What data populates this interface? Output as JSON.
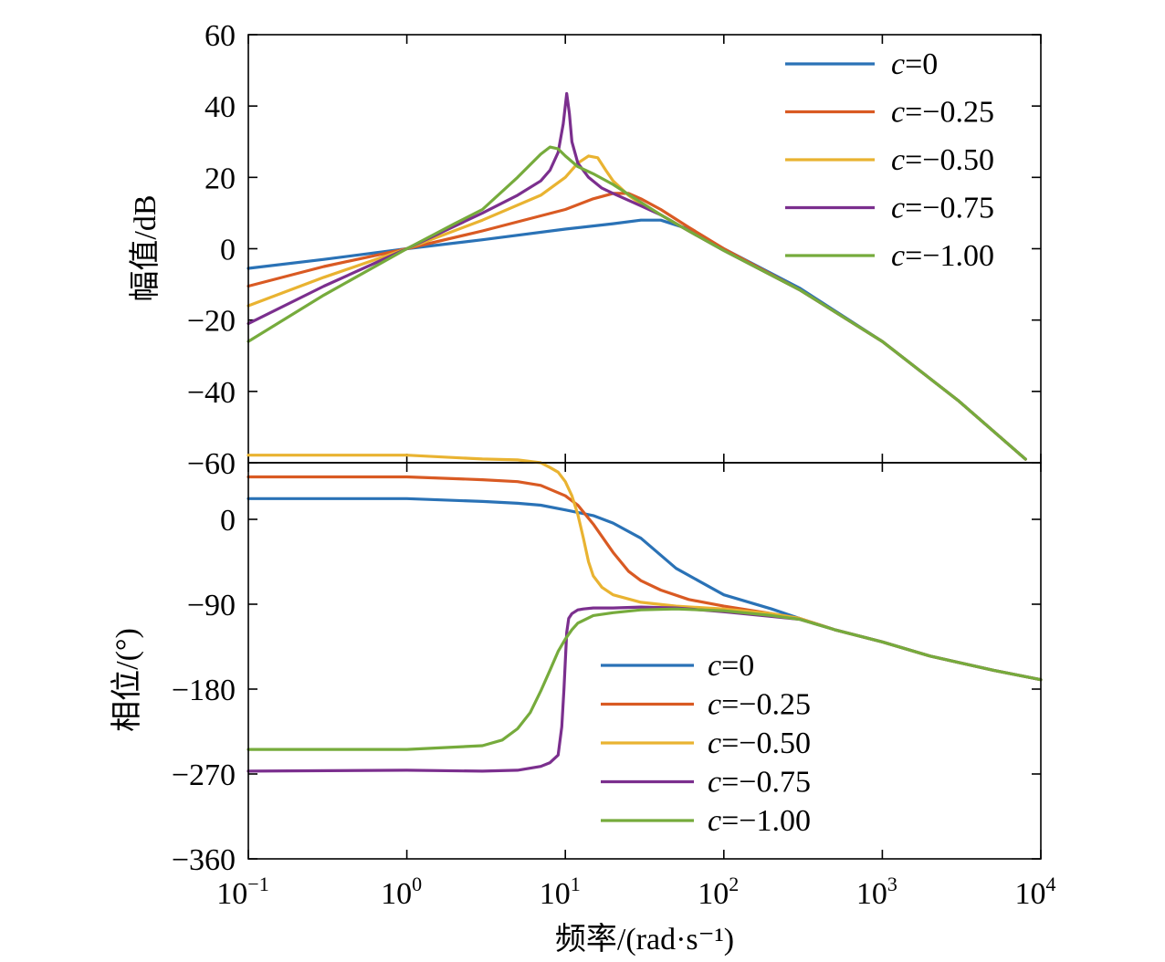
{
  "colors": {
    "c=0": "#2a72b6",
    "c=-0.25": "#d95a23",
    "c=-0.50": "#e9b331",
    "c=-0.75": "#7b2f8e",
    "c=-1.00": "#76ab3c"
  },
  "chart_data": [
    {
      "type": "line",
      "panel": "magnitude",
      "ylabel": "幅值/dB",
      "xscale": "log",
      "xlim": [
        0.1,
        10000
      ],
      "ylim": [
        -60,
        60
      ],
      "yticks": [
        60,
        40,
        20,
        0,
        -20,
        -40,
        -60
      ],
      "ytick_labels": [
        "60",
        "40",
        "20",
        "0",
        "−20",
        "−40",
        "−60"
      ],
      "legend_position": "top-right",
      "legend": [
        {
          "prefix": "c",
          "suffix": "=0"
        },
        {
          "prefix": "c",
          "suffix": "=−0.25"
        },
        {
          "prefix": "c",
          "suffix": "=−0.50"
        },
        {
          "prefix": "c",
          "suffix": "=−0.75"
        },
        {
          "prefix": "c",
          "suffix": "=−1.00"
        }
      ],
      "series": [
        {
          "key": "c=0",
          "x": [
            0.1,
            0.3,
            1,
            3,
            10,
            20,
            30,
            40,
            60,
            100,
            300,
            1000,
            3000,
            8000
          ],
          "y": [
            -5.5,
            -3,
            0,
            2.5,
            5.5,
            7,
            8,
            8,
            5.5,
            0,
            -11,
            -26,
            -42.5,
            -59
          ]
        },
        {
          "key": "c=-0.25",
          "x": [
            0.1,
            0.3,
            1,
            3,
            10,
            15,
            20,
            25,
            30,
            40,
            60,
            100,
            300,
            1000,
            3000,
            8000
          ],
          "y": [
            -10.5,
            -5,
            0,
            5,
            11,
            14,
            15.5,
            15.5,
            14,
            11,
            6,
            0,
            -11.5,
            -26,
            -42.5,
            -59
          ]
        },
        {
          "key": "c=-0.50",
          "x": [
            0.1,
            0.3,
            1,
            3,
            7,
            10,
            12,
            14,
            16,
            18,
            20,
            25,
            30,
            40,
            60,
            100,
            300,
            1000,
            3000,
            8000
          ],
          "y": [
            -16,
            -8,
            0,
            8,
            15,
            20,
            24,
            26,
            25.5,
            22,
            19,
            15,
            12.5,
            9.5,
            5,
            -0.5,
            -11.5,
            -26,
            -42.5,
            -59
          ]
        },
        {
          "key": "c=-0.75",
          "x": [
            0.1,
            0.3,
            1,
            3,
            5,
            7,
            8,
            9,
            9.7,
            10.2,
            10.6,
            11,
            12,
            14,
            17,
            20,
            30,
            40,
            60,
            100,
            300,
            1000,
            3000,
            8000
          ],
          "y": [
            -21,
            -10.5,
            0,
            10,
            15,
            19,
            22,
            27,
            35,
            43.5,
            38,
            30,
            24,
            20,
            17,
            15.5,
            12,
            9.5,
            5,
            -0.5,
            -11.5,
            -26,
            -42.5,
            -59
          ]
        },
        {
          "key": "c=-1.00",
          "x": [
            0.1,
            0.3,
            1,
            2,
            3,
            5,
            7,
            8,
            9,
            10,
            12,
            15,
            20,
            30,
            40,
            60,
            100,
            300,
            1000,
            3000,
            8000
          ],
          "y": [
            -26,
            -13,
            0,
            7,
            11,
            20,
            26.5,
            28.5,
            28,
            26,
            23,
            21,
            18,
            13,
            9.5,
            5,
            -0.5,
            -11.5,
            -26,
            -42.5,
            -59
          ]
        }
      ]
    },
    {
      "type": "line",
      "panel": "phase",
      "xlabel": "频率/(rad·s⁻¹)",
      "ylabel": "相位/(°)",
      "xscale": "log",
      "xlim": [
        0.1,
        10000
      ],
      "ylim": [
        -360,
        60
      ],
      "yticks": [
        0,
        -90,
        -180,
        -270,
        -360
      ],
      "ytick_labels": [
        "0",
        "−90",
        "−180",
        "−270",
        "−360"
      ],
      "xticks": [
        0.1,
        1,
        10,
        100,
        1000,
        10000
      ],
      "xtick_labels": [
        {
          "base": "10",
          "exp": "−1"
        },
        {
          "base": "10",
          "exp": "0"
        },
        {
          "base": "10",
          "exp": "1"
        },
        {
          "base": "10",
          "exp": "2"
        },
        {
          "base": "10",
          "exp": "3"
        },
        {
          "base": "10",
          "exp": "4"
        }
      ],
      "legend_position": "bottom-center",
      "legend": [
        {
          "prefix": "c",
          "suffix": "=0"
        },
        {
          "prefix": "c",
          "suffix": "=−0.25"
        },
        {
          "prefix": "c",
          "suffix": "=−0.50"
        },
        {
          "prefix": "c",
          "suffix": "=−0.75"
        },
        {
          "prefix": "c",
          "suffix": "=−1.00"
        }
      ],
      "series": [
        {
          "key": "c=0",
          "x": [
            0.1,
            1,
            3,
            5,
            7,
            10,
            15,
            20,
            30,
            50,
            100,
            200,
            300,
            500,
            1000,
            2000,
            5000,
            10000
          ],
          "y": [
            22,
            22,
            19,
            17,
            15,
            10,
            4,
            -4,
            -20,
            -52,
            -80,
            -95,
            -105,
            -117,
            -130,
            -145,
            -160,
            -170
          ]
        },
        {
          "key": "c=-0.25",
          "x": [
            0.1,
            1,
            3,
            5,
            7,
            10,
            12,
            15,
            20,
            25,
            30,
            40,
            60,
            100,
            200,
            300,
            500,
            1000,
            2000,
            5000,
            10000
          ],
          "y": [
            45,
            45,
            42,
            40,
            36,
            25,
            15,
            -5,
            -35,
            -55,
            -65,
            -75,
            -85,
            -92,
            -100,
            -105,
            -117,
            -130,
            -145,
            -160,
            -170
          ]
        },
        {
          "key": "c=-0.50",
          "x": [
            0.1,
            1,
            3,
            5,
            7,
            8,
            9,
            10,
            11,
            12,
            13,
            14,
            15,
            17,
            20,
            30,
            50,
            100,
            200,
            300,
            500,
            1000,
            2000,
            5000,
            10000
          ],
          "y": [
            68,
            68,
            64,
            63,
            60,
            55,
            50,
            40,
            25,
            5,
            -20,
            -45,
            -60,
            -72,
            -80,
            -88,
            -92,
            -95,
            -100,
            -105,
            -117,
            -130,
            -145,
            -160,
            -170
          ]
        },
        {
          "key": "c=-0.75",
          "x": [
            0.1,
            1,
            3,
            5,
            7,
            8,
            9,
            9.5,
            9.8,
            10,
            10.2,
            10.5,
            11,
            12,
            13,
            15,
            20,
            30,
            50,
            100,
            200,
            300,
            500,
            1000,
            2000,
            5000,
            10000
          ],
          "y": [
            -267,
            -266,
            -267,
            -266,
            -262,
            -258,
            -250,
            -220,
            -180,
            -150,
            -120,
            -105,
            -100,
            -96,
            -95,
            -94,
            -94,
            -93,
            -94,
            -98,
            -103,
            -106,
            -117,
            -130,
            -145,
            -160,
            -170
          ]
        },
        {
          "key": "c=-1.00",
          "x": [
            0.1,
            1,
            3,
            4,
            5,
            6,
            7,
            8,
            9,
            10,
            11,
            12,
            15,
            20,
            30,
            50,
            100,
            200,
            300,
            500,
            1000,
            2000,
            5000,
            10000
          ],
          "y": [
            -244,
            -244,
            -240,
            -234,
            -222,
            -205,
            -182,
            -160,
            -140,
            -127,
            -117,
            -110,
            -102,
            -99,
            -96,
            -95,
            -97,
            -102,
            -106,
            -117,
            -130,
            -145,
            -160,
            -170
          ]
        }
      ]
    }
  ]
}
